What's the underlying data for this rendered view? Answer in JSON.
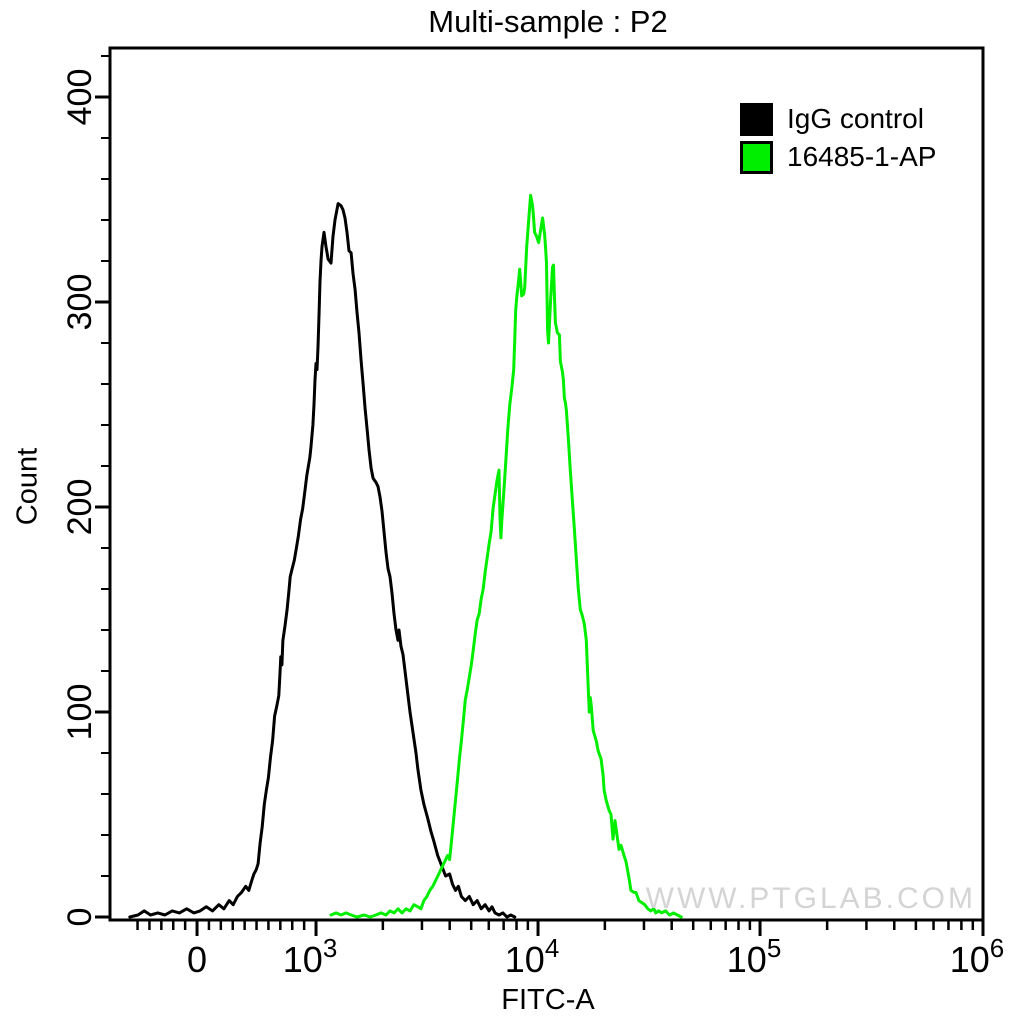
{
  "title": "Multi-sample : P2",
  "watermark": "WWW.PTGLAB.COM",
  "legend": [
    {
      "label": "IgG control",
      "color": "#000000"
    },
    {
      "label": "16485-1-AP",
      "color": "#00ee00"
    }
  ],
  "chart_data": {
    "type": "line",
    "subtype": "flow-cytometry-histogram-overlay",
    "title": "Multi-sample : P2",
    "xlabel": "FITC-A",
    "ylabel": "Count",
    "grid": false,
    "legend_position": "top-right-inside",
    "x_axis": {
      "scale": "biexponential",
      "ticks": [
        {
          "value": 0,
          "base": "0",
          "exp": "",
          "frac": 0.0997
        },
        {
          "value": 1000,
          "base": "10",
          "exp": "3",
          "frac": 0.236
        },
        {
          "value": 10000,
          "base": "10",
          "exp": "4",
          "frac": 0.4903
        },
        {
          "value": 100000,
          "base": "10",
          "exp": "5",
          "frac": 0.7446
        },
        {
          "value": 1000000,
          "base": "10",
          "exp": "6",
          "frac": 1.0
        }
      ],
      "minor_tick_values": [
        -500,
        -400,
        -300,
        -200,
        -100,
        100,
        200,
        300,
        400,
        500,
        600,
        700,
        800,
        900,
        2000,
        3000,
        4000,
        5000,
        6000,
        7000,
        8000,
        9000,
        20000,
        30000,
        40000,
        50000,
        60000,
        70000,
        80000,
        90000,
        200000,
        300000,
        400000,
        500000,
        600000,
        700000,
        800000,
        900000
      ]
    },
    "y_axis": {
      "label": "Count",
      "ylim": [
        0,
        424
      ],
      "major_ticks": [
        0,
        100,
        200,
        300,
        400
      ],
      "minor_step": 20
    },
    "series": [
      {
        "name": "IgG control",
        "color": "#000000",
        "peak": {
          "x": 1257,
          "count": 348
        },
        "points": [
          [
            -565,
            0
          ],
          [
            -496,
            1
          ],
          [
            -444,
            3
          ],
          [
            -391,
            1
          ],
          [
            -330,
            2
          ],
          [
            -270,
            1
          ],
          [
            -209,
            3
          ],
          [
            -148,
            2
          ],
          [
            -87,
            4
          ],
          [
            -26,
            2
          ],
          [
            26,
            3
          ],
          [
            78,
            5
          ],
          [
            130,
            3
          ],
          [
            183,
            6
          ],
          [
            226,
            4
          ],
          [
            270,
            8
          ],
          [
            304,
            6
          ],
          [
            339,
            10
          ],
          [
            374,
            12
          ],
          [
            409,
            15
          ],
          [
            435,
            13
          ],
          [
            461,
            18
          ],
          [
            478,
            21
          ],
          [
            496,
            23
          ],
          [
            513,
            26
          ],
          [
            530,
            36
          ],
          [
            548,
            44
          ],
          [
            565,
            55
          ],
          [
            583,
            62
          ],
          [
            600,
            68
          ],
          [
            617,
            78
          ],
          [
            635,
            86
          ],
          [
            652,
            98
          ],
          [
            670,
            103
          ],
          [
            687,
            108
          ],
          [
            696,
            118
          ],
          [
            704,
            127
          ],
          [
            713,
            123
          ],
          [
            722,
            135
          ],
          [
            739,
            142
          ],
          [
            757,
            150
          ],
          [
            774,
            160
          ],
          [
            783,
            166
          ],
          [
            800,
            170
          ],
          [
            817,
            174
          ],
          [
            835,
            180
          ],
          [
            852,
            186
          ],
          [
            870,
            194
          ],
          [
            887,
            199
          ],
          [
            905,
            207
          ],
          [
            922,
            215
          ],
          [
            930,
            218
          ],
          [
            948,
            224
          ],
          [
            957,
            229
          ],
          [
            974,
            240
          ],
          [
            983,
            250
          ],
          [
            991,
            262
          ],
          [
            1000,
            270
          ],
          [
            1010,
            267
          ],
          [
            1021,
            278
          ],
          [
            1032,
            295
          ],
          [
            1042,
            310
          ],
          [
            1053,
            320
          ],
          [
            1064,
            327
          ],
          [
            1086,
            334
          ],
          [
            1109,
            327
          ],
          [
            1133,
            321
          ],
          [
            1168,
            319
          ],
          [
            1193,
            332
          ],
          [
            1218,
            340
          ],
          [
            1257,
            348
          ],
          [
            1296,
            347
          ],
          [
            1323,
            345
          ],
          [
            1351,
            341
          ],
          [
            1379,
            334
          ],
          [
            1408,
            325
          ],
          [
            1438,
            324
          ],
          [
            1468,
            314
          ],
          [
            1499,
            306
          ],
          [
            1530,
            295
          ],
          [
            1562,
            285
          ],
          [
            1595,
            272
          ],
          [
            1629,
            260
          ],
          [
            1663,
            248
          ],
          [
            1698,
            238
          ],
          [
            1733,
            228
          ],
          [
            1770,
            219
          ],
          [
            1807,
            214
          ],
          [
            1863,
            212
          ],
          [
            1902,
            210
          ],
          [
            1942,
            205
          ],
          [
            1983,
            198
          ],
          [
            2024,
            188
          ],
          [
            2067,
            178
          ],
          [
            2110,
            170
          ],
          [
            2154,
            166
          ],
          [
            2200,
            158
          ],
          [
            2246,
            148
          ],
          [
            2293,
            140
          ],
          [
            2341,
            135
          ],
          [
            2365,
            140
          ],
          [
            2414,
            132
          ],
          [
            2465,
            128
          ],
          [
            2542,
            116
          ],
          [
            2595,
            108
          ],
          [
            2650,
            100
          ],
          [
            2733,
            90
          ],
          [
            2819,
            80
          ],
          [
            2878,
            72
          ],
          [
            2968,
            62
          ],
          [
            3061,
            55
          ],
          [
            3189,
            48
          ],
          [
            3289,
            42
          ],
          [
            3391,
            37
          ],
          [
            3533,
            30
          ],
          [
            3681,
            25
          ],
          [
            3835,
            20
          ],
          [
            3996,
            21
          ],
          [
            4120,
            16
          ],
          [
            4248,
            13
          ],
          [
            4380,
            15
          ],
          [
            4516,
            10
          ],
          [
            4705,
            8
          ],
          [
            4902,
            10
          ],
          [
            5107,
            6
          ],
          [
            5321,
            8
          ],
          [
            5544,
            4
          ],
          [
            5776,
            6
          ],
          [
            6018,
            3
          ],
          [
            6206,
            5
          ],
          [
            6400,
            2
          ],
          [
            6668,
            1
          ],
          [
            6947,
            2
          ],
          [
            7238,
            0
          ],
          [
            7541,
            1
          ],
          [
            7857,
            0
          ]
        ]
      },
      {
        "name": "16485-1-AP",
        "color": "#00ee00",
        "peak": {
          "x": 9262,
          "count": 352
        },
        "points": [
          [
            1168,
            1
          ],
          [
            1231,
            2
          ],
          [
            1296,
            1
          ],
          [
            1366,
            2
          ],
          [
            1438,
            1
          ],
          [
            1530,
            0
          ],
          [
            1646,
            1
          ],
          [
            1752,
            0
          ],
          [
            1863,
            1
          ],
          [
            1962,
            2
          ],
          [
            2067,
            1
          ],
          [
            2154,
            3
          ],
          [
            2246,
            2
          ],
          [
            2341,
            4
          ],
          [
            2440,
            2
          ],
          [
            2542,
            4
          ],
          [
            2650,
            3
          ],
          [
            2761,
            6
          ],
          [
            2878,
            5
          ],
          [
            2968,
            4
          ],
          [
            3061,
            8
          ],
          [
            3157,
            10
          ],
          [
            3256,
            13
          ],
          [
            3358,
            15
          ],
          [
            3463,
            18
          ],
          [
            3572,
            21
          ],
          [
            3681,
            24
          ],
          [
            3797,
            27
          ],
          [
            3915,
            30
          ],
          [
            3996,
            28
          ],
          [
            4078,
            37
          ],
          [
            4163,
            47
          ],
          [
            4248,
            57
          ],
          [
            4336,
            67
          ],
          [
            4426,
            77
          ],
          [
            4516,
            86
          ],
          [
            4610,
            96
          ],
          [
            4705,
            106
          ],
          [
            4802,
            111
          ],
          [
            4902,
            117
          ],
          [
            5003,
            123
          ],
          [
            5107,
            130
          ],
          [
            5212,
            138
          ],
          [
            5321,
            145
          ],
          [
            5431,
            148
          ],
          [
            5543,
            155
          ],
          [
            5660,
            160
          ],
          [
            5776,
            168
          ],
          [
            5897,
            175
          ],
          [
            6018,
            182
          ],
          [
            6144,
            188
          ],
          [
            6270,
            199
          ],
          [
            6400,
            206
          ],
          [
            6533,
            213
          ],
          [
            6668,
            218
          ],
          [
            6737,
            195
          ],
          [
            6806,
            185
          ],
          [
            6876,
            194
          ],
          [
            7018,
            208
          ],
          [
            7163,
            223
          ],
          [
            7311,
            238
          ],
          [
            7461,
            250
          ],
          [
            7616,
            258
          ],
          [
            7773,
            267
          ],
          [
            7853,
            281
          ],
          [
            7935,
            296
          ],
          [
            8016,
            302
          ],
          [
            8184,
            311
          ],
          [
            8268,
            316
          ],
          [
            8441,
            303
          ],
          [
            8617,
            304
          ],
          [
            8705,
            307
          ],
          [
            8887,
            327
          ],
          [
            9073,
            340
          ],
          [
            9262,
            352
          ],
          [
            9456,
            347
          ],
          [
            9554,
            341
          ],
          [
            9653,
            334
          ],
          [
            9854,
            332
          ],
          [
            10060,
            329
          ],
          [
            10270,
            335
          ],
          [
            10480,
            341
          ],
          [
            10700,
            333
          ],
          [
            10810,
            327
          ],
          [
            10920,
            319
          ],
          [
            11040,
            286
          ],
          [
            11150,
            280
          ],
          [
            11380,
            300
          ],
          [
            11620,
            317
          ],
          [
            11740,
            318
          ],
          [
            11860,
            302
          ],
          [
            11980,
            290
          ],
          [
            12230,
            285
          ],
          [
            12480,
            284
          ],
          [
            12610,
            271
          ],
          [
            12880,
            266
          ],
          [
            13010,
            262
          ],
          [
            13140,
            253
          ],
          [
            13280,
            251
          ],
          [
            13420,
            247
          ],
          [
            13700,
            233
          ],
          [
            13980,
            218
          ],
          [
            14280,
            203
          ],
          [
            14580,
            189
          ],
          [
            14880,
            174
          ],
          [
            15190,
            160
          ],
          [
            15510,
            150
          ],
          [
            15830,
            147
          ],
          [
            16160,
            143
          ],
          [
            16500,
            135
          ],
          [
            16840,
            111
          ],
          [
            17020,
            100
          ],
          [
            17190,
            107
          ],
          [
            17370,
            103
          ],
          [
            17730,
            91
          ],
          [
            18280,
            86
          ],
          [
            18660,
            81
          ],
          [
            19240,
            77
          ],
          [
            19640,
            69
          ],
          [
            19840,
            62
          ],
          [
            20250,
            57
          ],
          [
            20890,
            52
          ],
          [
            21320,
            50
          ],
          [
            21770,
            38
          ],
          [
            22220,
            47
          ],
          [
            22690,
            40
          ],
          [
            23160,
            33
          ],
          [
            23650,
            35
          ],
          [
            24390,
            30
          ],
          [
            24900,
            27
          ],
          [
            25680,
            19
          ],
          [
            26210,
            13
          ],
          [
            27030,
            12
          ],
          [
            27590,
            12
          ],
          [
            28460,
            8
          ],
          [
            29350,
            7
          ],
          [
            30260,
            6
          ],
          [
            31220,
            4
          ],
          [
            32190,
            3
          ],
          [
            33210,
            4
          ],
          [
            33890,
            2
          ],
          [
            34950,
            3
          ],
          [
            36040,
            2
          ],
          [
            37550,
            3
          ],
          [
            39110,
            1
          ],
          [
            40740,
            2
          ],
          [
            42440,
            1
          ],
          [
            44210,
            0
          ]
        ]
      }
    ]
  }
}
